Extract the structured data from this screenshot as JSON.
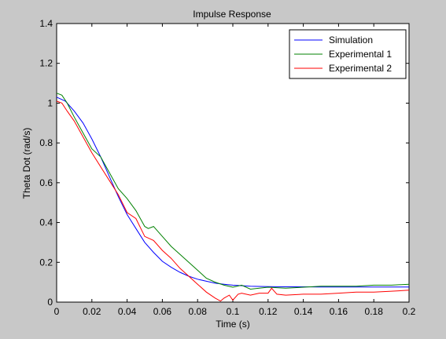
{
  "chart_data": {
    "type": "line",
    "title": "Impulse Response",
    "xlabel": "Time (s)",
    "ylabel": "Theta Dot  (rad/s)",
    "xlim": [
      0,
      0.2
    ],
    "ylim": [
      0,
      1.4
    ],
    "xticks": [
      "0",
      "0.02",
      "0.04",
      "0.06",
      "0.08",
      "0.1",
      "0.12",
      "0.14",
      "0.16",
      "0.18",
      "0.2"
    ],
    "yticks": [
      "0",
      "0.2",
      "0.4",
      "0.6",
      "0.8",
      "1",
      "1.2",
      "1.4"
    ],
    "grid": false,
    "legend_position": "top-right",
    "series": [
      {
        "name": "Simulation",
        "color": "#0000ff",
        "x": [
          0,
          0.005,
          0.01,
          0.015,
          0.02,
          0.025,
          0.03,
          0.035,
          0.04,
          0.045,
          0.05,
          0.055,
          0.06,
          0.065,
          0.07,
          0.075,
          0.08,
          0.085,
          0.09,
          0.095,
          0.1,
          0.11,
          0.12,
          0.13,
          0.14,
          0.15,
          0.16,
          0.17,
          0.18,
          0.19,
          0.2
        ],
        "y": [
          1.03,
          1.01,
          0.96,
          0.9,
          0.82,
          0.73,
          0.63,
          0.53,
          0.44,
          0.37,
          0.3,
          0.25,
          0.205,
          0.175,
          0.15,
          0.13,
          0.115,
          0.105,
          0.095,
          0.09,
          0.085,
          0.08,
          0.078,
          0.077,
          0.077,
          0.076,
          0.076,
          0.076,
          0.076,
          0.076,
          0.076
        ]
      },
      {
        "name": "Experimental 1",
        "color": "#008000",
        "x": [
          0,
          0.003,
          0.006,
          0.01,
          0.015,
          0.02,
          0.025,
          0.03,
          0.035,
          0.04,
          0.045,
          0.05,
          0.052,
          0.055,
          0.06,
          0.065,
          0.07,
          0.075,
          0.08,
          0.085,
          0.09,
          0.095,
          0.1,
          0.105,
          0.11,
          0.12,
          0.13,
          0.14,
          0.15,
          0.16,
          0.17,
          0.18,
          0.19,
          0.2
        ],
        "y": [
          1.05,
          1.04,
          1.0,
          0.93,
          0.85,
          0.77,
          0.73,
          0.65,
          0.57,
          0.52,
          0.46,
          0.38,
          0.37,
          0.38,
          0.33,
          0.28,
          0.24,
          0.2,
          0.16,
          0.12,
          0.1,
          0.085,
          0.075,
          0.085,
          0.065,
          0.075,
          0.07,
          0.075,
          0.08,
          0.08,
          0.08,
          0.085,
          0.085,
          0.09
        ]
      },
      {
        "name": "Experimental 2",
        "color": "#ff0000",
        "x": [
          0,
          0.003,
          0.006,
          0.01,
          0.015,
          0.02,
          0.025,
          0.03,
          0.035,
          0.04,
          0.045,
          0.05,
          0.055,
          0.06,
          0.065,
          0.07,
          0.075,
          0.08,
          0.085,
          0.09,
          0.093,
          0.095,
          0.098,
          0.1,
          0.103,
          0.105,
          0.11,
          0.115,
          0.12,
          0.122,
          0.125,
          0.13,
          0.14,
          0.15,
          0.16,
          0.17,
          0.18,
          0.19,
          0.2
        ],
        "y": [
          1.01,
          1.0,
          0.96,
          0.91,
          0.83,
          0.75,
          0.68,
          0.61,
          0.54,
          0.45,
          0.42,
          0.33,
          0.31,
          0.26,
          0.22,
          0.17,
          0.13,
          0.09,
          0.05,
          0.02,
          0.005,
          0.02,
          0.035,
          0.01,
          0.04,
          0.045,
          0.035,
          0.045,
          0.045,
          0.07,
          0.04,
          0.035,
          0.04,
          0.04,
          0.045,
          0.05,
          0.05,
          0.055,
          0.06
        ]
      }
    ]
  }
}
